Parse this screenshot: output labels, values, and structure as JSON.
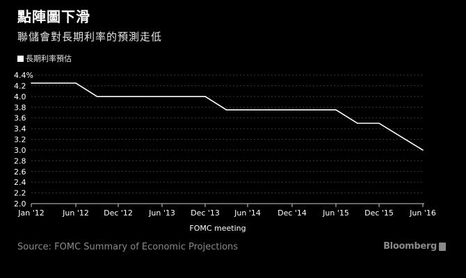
{
  "title": "點陣圖下滑",
  "subtitle": "聯儲會對長期利率的預測走低",
  "legend_label": "長期利率預估",
  "xlabel": "FOMC meeting",
  "source": "Source: FOMC Summary of Economic Projections",
  "brand": "Bloomberg",
  "colors": {
    "background": "#000000",
    "line": "#ffffff",
    "grid": "#3a3a3a",
    "axis_text": "#ffffff",
    "footer_text": "#8a8a8a"
  },
  "chart_data": {
    "type": "line",
    "title": "點陣圖下滑",
    "subtitle": "聯儲會對長期利率的預測走低",
    "xlabel": "FOMC meeting",
    "ylabel": "",
    "ylim": [
      2.0,
      4.4
    ],
    "yticks": [
      2.0,
      2.2,
      2.4,
      2.6,
      2.8,
      3.0,
      3.2,
      3.4,
      3.6,
      3.8,
      4.0,
      4.2,
      4.4
    ],
    "ytick_labels": [
      "2.0",
      "2.2",
      "2.4",
      "2.6",
      "2.8",
      "3.0",
      "3.2",
      "3.4",
      "3.6",
      "3.8",
      "4.0",
      "4.2",
      "4.4%"
    ],
    "xticks": [
      "Jan '12",
      "Jun '12",
      "Dec '12",
      "Jun '13",
      "Dec '13",
      "Jun '14",
      "Dec '14",
      "Jun '15",
      "Dec '15",
      "Jun '16"
    ],
    "grid": true,
    "legend_position": "top-left",
    "series": [
      {
        "name": "長期利率預估",
        "x": [
          "Jan '12",
          "Jun '12",
          "Sep '12",
          "Dec '12",
          "Mar '13",
          "Jun '13",
          "Sep '13",
          "Dec '13",
          "Mar '14",
          "Jun '14",
          "Sep '14",
          "Dec '14",
          "Mar '15",
          "Jun '15",
          "Sep '15",
          "Dec '15",
          "Mar '16",
          "Jun '16"
        ],
        "values": [
          4.25,
          4.25,
          4.0,
          4.0,
          4.0,
          4.0,
          4.0,
          4.0,
          3.75,
          3.75,
          3.75,
          3.75,
          3.75,
          3.75,
          3.5,
          3.5,
          3.25,
          3.0
        ]
      }
    ]
  }
}
